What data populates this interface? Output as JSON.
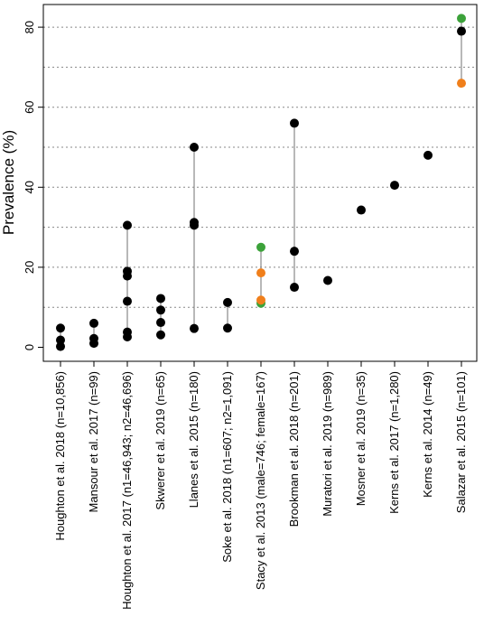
{
  "chart_data": {
    "type": "scatter",
    "ylabel": "Prevalence (%)",
    "ylim": [
      -4,
      84
    ],
    "yticks": [
      0,
      20,
      40,
      60,
      80
    ],
    "grid_lines_y": [
      10,
      20,
      30,
      40,
      50,
      60,
      70,
      80
    ],
    "colors": {
      "all": "#000000",
      "male": "#f07f1b",
      "female": "#3ca23a",
      "range_line": "#888888",
      "grid": "#888888"
    },
    "categories": [
      "Houghton et al. 2018 (n=10,856)",
      "Mansour et al. 2017 (n=99)",
      "Houghton et al. 2017  (n1=46,943; n2=46,696)",
      "Skwerer et al. 2019 (n=65)",
      "Llanes et al. 2015 (n=180)",
      "Soke et al. 2018  (n1=607; n2=1,091)",
      "Stacy et al. 2013 (male=746; female=167)",
      "Brookman et al. 2018 (n=201)",
      "Muratori et al. 2019 (n=989)",
      "Mosner et al. 2019 (n=35)",
      "Kerns et al. 2017 (n=1,280)",
      "Kerns et al. 2014 (n=49)",
      "Salazar et al. 2015 (n=101)"
    ],
    "points": [
      {
        "x": 0,
        "y": 4.8,
        "group": "all"
      },
      {
        "x": 0,
        "y": 1.8,
        "group": "all"
      },
      {
        "x": 0,
        "y": 0.2,
        "group": "all"
      },
      {
        "x": 1,
        "y": 6.0,
        "group": "all"
      },
      {
        "x": 1,
        "y": 2.2,
        "group": "all"
      },
      {
        "x": 1,
        "y": 1.0,
        "group": "all"
      },
      {
        "x": 2,
        "y": 30.5,
        "group": "all"
      },
      {
        "x": 2,
        "y": 19.0,
        "group": "all"
      },
      {
        "x": 2,
        "y": 17.8,
        "group": "all"
      },
      {
        "x": 2,
        "y": 11.5,
        "group": "all"
      },
      {
        "x": 2,
        "y": 3.8,
        "group": "all"
      },
      {
        "x": 2,
        "y": 2.6,
        "group": "all"
      },
      {
        "x": 3,
        "y": 12.2,
        "group": "all"
      },
      {
        "x": 3,
        "y": 9.3,
        "group": "all"
      },
      {
        "x": 3,
        "y": 6.2,
        "group": "all"
      },
      {
        "x": 3,
        "y": 3.1,
        "group": "all"
      },
      {
        "x": 4,
        "y": 50.0,
        "group": "all"
      },
      {
        "x": 4,
        "y": 31.2,
        "group": "all"
      },
      {
        "x": 4,
        "y": 30.5,
        "group": "all"
      },
      {
        "x": 4,
        "y": 4.7,
        "group": "all"
      },
      {
        "x": 5,
        "y": 11.2,
        "group": "all"
      },
      {
        "x": 5,
        "y": 4.8,
        "group": "all"
      },
      {
        "x": 6,
        "y": 25.0,
        "group": "female"
      },
      {
        "x": 6,
        "y": 11.0,
        "group": "female"
      },
      {
        "x": 6,
        "y": 18.6,
        "group": "male"
      },
      {
        "x": 6,
        "y": 11.8,
        "group": "male"
      },
      {
        "x": 7,
        "y": 56.0,
        "group": "all"
      },
      {
        "x": 7,
        "y": 24.0,
        "group": "all"
      },
      {
        "x": 7,
        "y": 15.0,
        "group": "all"
      },
      {
        "x": 8,
        "y": 16.7,
        "group": "all"
      },
      {
        "x": 9,
        "y": 34.3,
        "group": "all"
      },
      {
        "x": 10,
        "y": 40.5,
        "group": "all"
      },
      {
        "x": 11,
        "y": 48.0,
        "group": "all"
      },
      {
        "x": 12,
        "y": 82.2,
        "group": "female"
      },
      {
        "x": 12,
        "y": 79.0,
        "group": "all"
      },
      {
        "x": 12,
        "y": 66.0,
        "group": "male"
      }
    ],
    "ranges": [
      {
        "x": 0,
        "y": [
          0.2,
          4.8
        ]
      },
      {
        "x": 1,
        "y": [
          1.0,
          6.0
        ]
      },
      {
        "x": 2,
        "y": [
          2.6,
          30.5
        ]
      },
      {
        "x": 3,
        "y": [
          3.1,
          12.2
        ]
      },
      {
        "x": 4,
        "y": [
          4.7,
          50.0
        ]
      },
      {
        "x": 5,
        "y": [
          4.8,
          11.2
        ]
      },
      {
        "x": 6,
        "y": [
          11.0,
          25.0
        ]
      },
      {
        "x": 7,
        "y": [
          15.0,
          56.0
        ]
      },
      {
        "x": 12,
        "y": [
          66.0,
          82.2
        ]
      }
    ]
  }
}
